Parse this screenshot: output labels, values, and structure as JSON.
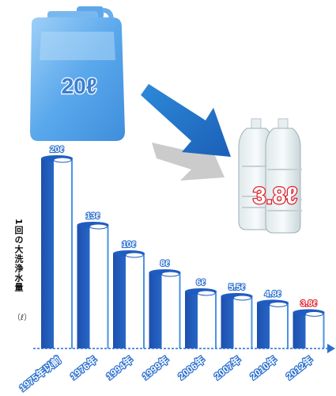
{
  "chart_data": {
    "type": "bar",
    "categories": [
      "1975年以前",
      "1976年",
      "1994年",
      "1999年",
      "2006年",
      "2007年",
      "2010年",
      "2012年"
    ],
    "values": [
      20,
      13,
      10,
      8,
      6,
      5.5,
      4.8,
      3.8
    ],
    "value_labels": [
      "20ℓ",
      "13ℓ",
      "10ℓ",
      "8ℓ",
      "6ℓ",
      "5.5ℓ",
      "4.8ℓ",
      "3.8ℓ"
    ],
    "ylabel": "1回の大洗浄水量",
    "yunit": "（ℓ）",
    "highlight_color": "#e0202a",
    "bar_color": "#2a6fd0"
  },
  "illustration": {
    "big_tank_label": "20ℓ",
    "bottles_label": "3.8ℓ",
    "tank_icon": "water-tank-icon",
    "bottles_icon": "plastic-bottles-icon",
    "arrow_icon": "arrow-down-right-icon"
  }
}
